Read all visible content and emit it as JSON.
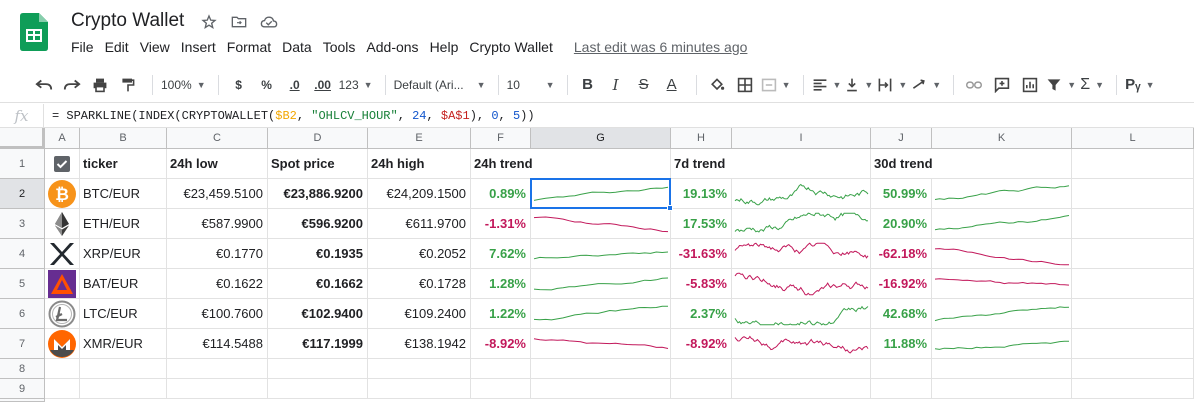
{
  "doc": {
    "title": "Crypto Wallet",
    "menu": [
      "File",
      "Edit",
      "View",
      "Insert",
      "Format",
      "Data",
      "Tools",
      "Add-ons",
      "Help",
      "Crypto Wallet"
    ],
    "last_edit": "Last edit was 6 minutes ago"
  },
  "toolbar": {
    "zoom": "100%",
    "currency": "$",
    "percent": "%",
    "dec_less": ".0",
    "dec_more": ".00",
    "more_formats": "123",
    "font": "Default (Ari...",
    "font_size": "10",
    "bold": "B",
    "italic": "I",
    "strike": "S",
    "underline_color": "A",
    "input_tools": "Pᵧ"
  },
  "formula_bar": {
    "fx": "fx",
    "p1": "= SPARKLINE(INDEX(CRYPTOWALLET(",
    "ref1": "$B2",
    "p2": ", ",
    "str": "\"OHLCV_HOUR\"",
    "p3": ", ",
    "num1": "24",
    "p4": ", ",
    "ref2": "$A$1",
    "p5": "), ",
    "num2": "0",
    "p6": ", ",
    "num3": "5",
    "p7": "))"
  },
  "columns": [
    "A",
    "B",
    "C",
    "D",
    "E",
    "F",
    "G",
    "H",
    "I",
    "J",
    "K",
    "L"
  ],
  "rows": [
    "1",
    "2",
    "3",
    "4",
    "5",
    "6",
    "7",
    "8",
    "9"
  ],
  "header_row": {
    "ticker": "ticker",
    "low": "24h low",
    "spot": "Spot price",
    "high": "24h high",
    "trend24": "24h trend",
    "trend7": "7d trend",
    "trend30": "30d trend"
  },
  "colors": {
    "positive": "#38a148",
    "negative": "#c2185b",
    "selection": "#1a73e8"
  },
  "assets": [
    {
      "icon": "bitcoin-icon",
      "ticker": "BTC/EUR",
      "low": "€23,459.5100",
      "spot": "€23,886.9200",
      "high": "€24,209.1500",
      "d24": "0.89%",
      "d24_up": true,
      "d7": "19.13%",
      "d7_up": true,
      "d30": "50.99%",
      "d30_up": true
    },
    {
      "icon": "ethereum-icon",
      "ticker": "ETH/EUR",
      "low": "€587.9900",
      "spot": "€596.9200",
      "high": "€611.9700",
      "d24": "-1.31%",
      "d24_up": false,
      "d7": "17.53%",
      "d7_up": true,
      "d30": "20.90%",
      "d30_up": true
    },
    {
      "icon": "ripple-icon",
      "ticker": "XRP/EUR",
      "low": "€0.1770",
      "spot": "€0.1935",
      "high": "€0.2052",
      "d24": "7.62%",
      "d24_up": true,
      "d7": "-31.63%",
      "d7_up": false,
      "d30": "-62.18%",
      "d30_up": false
    },
    {
      "icon": "bat-icon",
      "ticker": "BAT/EUR",
      "low": "€0.1622",
      "spot": "€0.1662",
      "high": "€0.1728",
      "d24": "1.28%",
      "d24_up": true,
      "d7": "-5.83%",
      "d7_up": false,
      "d30": "-16.92%",
      "d30_up": false
    },
    {
      "icon": "litecoin-icon",
      "ticker": "LTC/EUR",
      "low": "€100.7600",
      "spot": "€102.9400",
      "high": "€109.2400",
      "d24": "1.22%",
      "d24_up": true,
      "d7": "2.37%",
      "d7_up": true,
      "d30": "42.68%",
      "d30_up": true
    },
    {
      "icon": "monero-icon",
      "ticker": "XMR/EUR",
      "low": "€114.5488",
      "spot": "€117.1999",
      "high": "€138.1942",
      "d24": "-8.92%",
      "d24_up": false,
      "d7": "-8.92%",
      "d7_up": false,
      "d30": "11.88%",
      "d30_up": true
    }
  ]
}
